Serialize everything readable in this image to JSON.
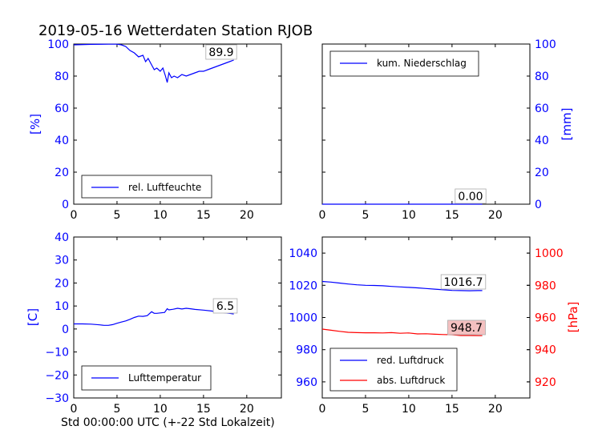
{
  "figure": {
    "title": "2019-05-16 Wetterdaten Station RJOB",
    "xlabel": "Std 00:00:00 UTC (+-22 Std Lokalzeit)"
  },
  "colors": {
    "blue": "#0000ff",
    "red": "#ff0000",
    "annot_fill_red": "#f4c0c0"
  },
  "chart_data": [
    {
      "id": "humidity",
      "type": "line",
      "ylabel": "[%]",
      "xlim": [
        0,
        24
      ],
      "ylim": [
        0,
        100
      ],
      "xticks": [
        0,
        5,
        10,
        15,
        20
      ],
      "yticks": [
        0,
        20,
        40,
        60,
        80,
        100
      ],
      "series": [
        {
          "name": "rel. Luftfeuchte",
          "color": "#0000ff",
          "x": [
            0,
            2,
            4,
            5,
            5.5,
            6,
            6.5,
            7,
            7.5,
            8,
            8.3,
            8.6,
            9,
            9.3,
            9.6,
            10,
            10.3,
            10.6,
            10.8,
            11,
            11.3,
            11.6,
            12,
            12.5,
            13,
            13.5,
            14,
            14.5,
            15,
            15.5,
            16,
            16.5,
            17,
            17.5,
            18,
            18.5
          ],
          "y": [
            99.5,
            99.8,
            99.9,
            99.9,
            99.5,
            98.5,
            96,
            94.5,
            92,
            93,
            89,
            91,
            87,
            84,
            85,
            83,
            85,
            80,
            76,
            82,
            79,
            80,
            79,
            81,
            80,
            81,
            82,
            83,
            83,
            84,
            85,
            86,
            87,
            88,
            89,
            90
          ]
        }
      ],
      "annotation": "89.9",
      "legend": "lower-left"
    },
    {
      "id": "precipitation",
      "type": "line",
      "ylabel": "[mm]",
      "xlim": [
        0,
        24
      ],
      "ylim": [
        0,
        100
      ],
      "xticks": [
        0,
        5,
        10,
        15,
        20
      ],
      "yticks": [
        0,
        20,
        40,
        60,
        80,
        100
      ],
      "series": [
        {
          "name": "kum. Niederschlag",
          "color": "#0000ff",
          "x": [
            0,
            18.5
          ],
          "y": [
            0.0,
            0.0
          ]
        }
      ],
      "annotation": "0.00",
      "legend": "upper-left"
    },
    {
      "id": "temperature",
      "type": "line",
      "ylabel": "[C]",
      "xlim": [
        0,
        24
      ],
      "ylim": [
        -30,
        40
      ],
      "xticks": [
        0,
        5,
        10,
        15,
        20
      ],
      "yticks": [
        -30,
        -20,
        -10,
        0,
        10,
        20,
        30,
        40
      ],
      "series": [
        {
          "name": "Lufttemperatur",
          "color": "#0000ff",
          "x": [
            0,
            1,
            2,
            3,
            3.5,
            4,
            4.5,
            5,
            5.5,
            6,
            6.5,
            7,
            7.5,
            8,
            8.5,
            9,
            9.3,
            9.6,
            10,
            10.5,
            10.8,
            11,
            11.5,
            12,
            12.5,
            13,
            13.5,
            14,
            15,
            16,
            17,
            18,
            18.5
          ],
          "y": [
            2.2,
            2.2,
            2.1,
            1.8,
            1.6,
            1.6,
            1.9,
            2.5,
            3.0,
            3.5,
            4.2,
            5.0,
            5.6,
            5.5,
            5.8,
            7.5,
            6.8,
            6.8,
            7.0,
            7.2,
            8.8,
            8.3,
            8.6,
            9.0,
            8.7,
            9.0,
            8.8,
            8.5,
            8.2,
            7.8,
            7.2,
            6.8,
            6.5
          ]
        }
      ],
      "annotation": "6.5",
      "legend": "lower-left"
    },
    {
      "id": "pressure",
      "type": "line",
      "ylabel": "[hPa]",
      "xlim": [
        0,
        24
      ],
      "ylim": [
        950,
        1050
      ],
      "ylim_right": [
        910,
        1010
      ],
      "xticks": [
        0,
        5,
        10,
        15,
        20
      ],
      "yticks": [
        960,
        980,
        1000,
        1020,
        1040
      ],
      "yticks_right": [
        920,
        940,
        960,
        980,
        1000
      ],
      "series": [
        {
          "name": "red. Luftdruck",
          "color": "#0000ff",
          "axis": "left",
          "x": [
            0,
            1,
            2,
            3,
            4,
            5,
            6,
            7,
            8,
            9,
            10,
            11,
            12,
            13,
            14,
            15,
            16,
            17,
            18,
            18.5
          ],
          "y": [
            1022.4,
            1022.0,
            1021.4,
            1020.8,
            1020.3,
            1020.0,
            1019.9,
            1019.7,
            1019.3,
            1019.0,
            1018.7,
            1018.4,
            1018.0,
            1017.6,
            1017.2,
            1016.8,
            1016.7,
            1016.6,
            1016.7,
            1016.7
          ]
        },
        {
          "name": "abs. Luftdruck",
          "color": "#ff0000",
          "axis": "right",
          "x": [
            0,
            1,
            2,
            3,
            4,
            5,
            6,
            7,
            8,
            9,
            10,
            11,
            12,
            13,
            14,
            15,
            16,
            17,
            18,
            18.5
          ],
          "y": [
            952.8,
            952.1,
            951.4,
            950.8,
            950.6,
            950.5,
            950.5,
            950.4,
            950.6,
            950.2,
            950.4,
            949.8,
            949.9,
            949.6,
            949.4,
            949.3,
            948.8,
            948.8,
            948.7,
            948.7
          ]
        }
      ],
      "annotations": [
        "1016.7",
        "948.7"
      ],
      "legend": "lower-left"
    }
  ]
}
